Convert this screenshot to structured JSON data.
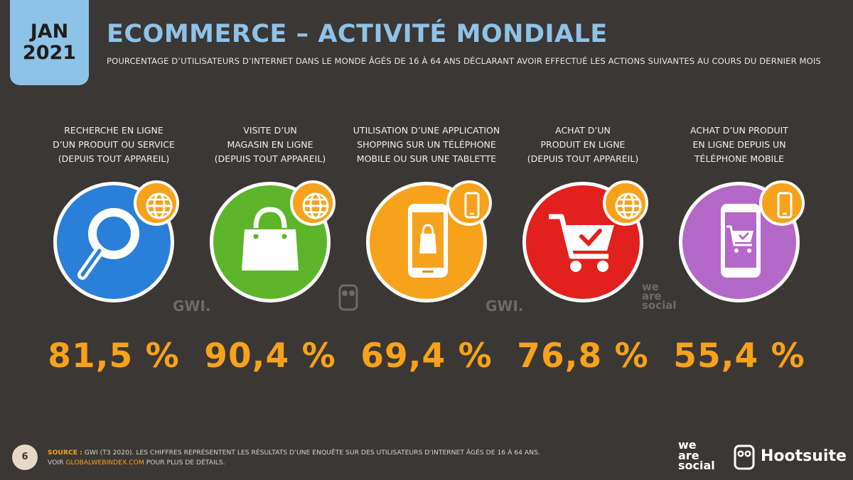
{
  "header": {
    "month": "JAN",
    "year": "2021",
    "title": "ECOMMERCE – ACTIVITÉ MONDIALE",
    "subtitle": "POURCENTAGE D’UTILISATEURS D’INTERNET DANS LE MONDE ÂGÉS DE 16 À 64 ANS DÉCLARANT AVOIR EFFECTUÉ LES ACTIONS SUIVANTES AU COURS DU DERNIER MOIS"
  },
  "colors": {
    "background": "#3b3735",
    "accent_blue": "#8ec3e8",
    "accent_orange": "#f7a21b"
  },
  "stats": [
    {
      "label": "RECHERCHE EN LIGNE\nD’UN PRODUIT OU SERVICE\n(DEPUIS TOUT APPAREIL)",
      "value": "81,5 %",
      "icon": "magnifier-icon",
      "badge_icon": "globe-icon",
      "color": "#2a7fd8"
    },
    {
      "label": "VISITE D’UN\nMAGASIN EN LIGNE\n(DEPUIS TOUT APPAREIL)",
      "value": "90,4 %",
      "icon": "shopping-bag-icon",
      "badge_icon": "globe-icon",
      "color": "#5db52b"
    },
    {
      "label": "UTILISATION D’UNE APPLICATION\nSHOPPING SUR UN TÉLÉPHONE\nMOBILE OU SUR UNE TABLETTE",
      "value": "69,4 %",
      "icon": "phone-bag-icon",
      "badge_icon": "phone-icon",
      "color": "#f7a21b"
    },
    {
      "label": "ACHAT D’UN\nPRODUIT EN LIGNE\n(DEPUIS TOUT APPAREIL)",
      "value": "76,8 %",
      "icon": "cart-icon",
      "badge_icon": "globe-icon",
      "color": "#e2201e"
    },
    {
      "label": "ACHAT D’UN PRODUIT\nEN LIGNE DEPUIS UN\nTÉLÉPHONE MOBILE",
      "value": "55,4 %",
      "icon": "phone-cart-icon",
      "badge_icon": "phone-icon",
      "color": "#b468c8"
    }
  ],
  "watermarks": {
    "gwi": "GWI.",
    "we_are_social": "we\nare\nsocial"
  },
  "footer": {
    "page_number": "6",
    "source_label": "SOURCE :",
    "source_text": " GWI (T3 2020). LES CHIFFRES REPRÉSENTENT LES RÉSULTATS D’UNE ENQUÊTE SUR DES UTILISATEURS D’INTERNET ÂGÉS DE 16 À 64 ANS.",
    "see_prefix": "VOIR ",
    "link": "GLOBALWEBINDEX.COM",
    "see_suffix": " POUR PLUS DE DÉTAILS."
  },
  "brands": {
    "we_are_social": "we\nare\nsocial",
    "hootsuite": "Hootsuite"
  }
}
